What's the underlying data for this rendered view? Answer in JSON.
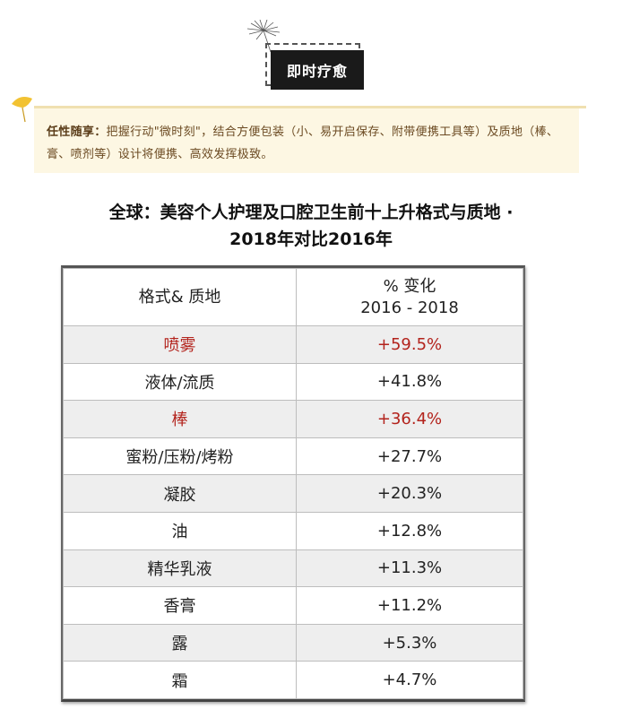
{
  "header": {
    "badge_label": "即时疗愈"
  },
  "note": {
    "lead": "任性随享：",
    "text": "把握行动\"微时刻\"，结合方便包装（小、易开启保存、附带便携工具等）及质地（棒、膏、喷剂等）设计将便携、高效发挥极致。"
  },
  "title": {
    "line1": "全球：美容个人护理及口腔卫生前十上升格式与质地 ·",
    "line2": "2018年对比2016年"
  },
  "table": {
    "headers": {
      "col1": "格式& 质地",
      "col2_line1": "% 变化",
      "col2_line2": "2016 - 2018"
    },
    "rows": [
      {
        "format": "喷雾",
        "change": "+59.5%"
      },
      {
        "format": "液体/流质",
        "change": "+41.8%"
      },
      {
        "format": "棒",
        "change": "+36.4%"
      },
      {
        "format": "蜜粉/压粉/烤粉",
        "change": "+27.7%"
      },
      {
        "format": "凝胶",
        "change": "+20.3%"
      },
      {
        "format": "油",
        "change": "+12.8%"
      },
      {
        "format": "精华乳液",
        "change": "+11.3%"
      },
      {
        "format": "香膏",
        "change": "+11.2%"
      },
      {
        "format": "露",
        "change": "+5.3%"
      },
      {
        "format": "霜",
        "change": "+4.7%"
      }
    ],
    "highlight_color": "#b3231c"
  },
  "icons": {
    "top": "dandelion-icon",
    "note": "ginkgo-leaf-icon"
  }
}
